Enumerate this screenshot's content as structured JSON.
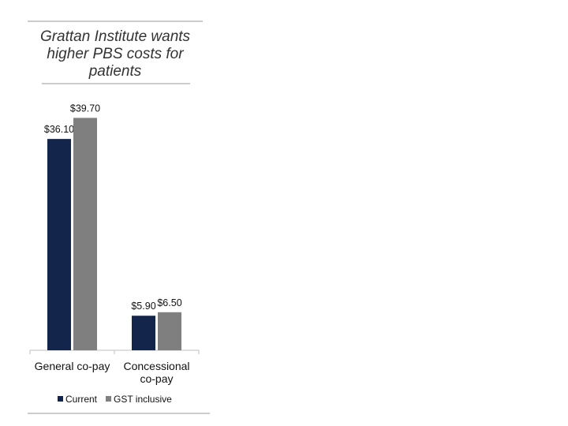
{
  "chart_data": {
    "type": "bar",
    "title_lines": [
      "Grattan Institute wants",
      "higher PBS costs for",
      "patients"
    ],
    "categories": [
      [
        "General co-pay"
      ],
      [
        "Concessional",
        "co-pay"
      ]
    ],
    "series": [
      {
        "name": "Current",
        "values": [
          36.1,
          5.9
        ],
        "labels": [
          "$36.10",
          "$5.90"
        ],
        "color": "#13254a"
      },
      {
        "name": "GST inclusive",
        "values": [
          39.7,
          6.5
        ],
        "labels": [
          "$39.70",
          "$6.50"
        ],
        "color": "#7f7f7f"
      }
    ],
    "ylim": [
      0,
      40
    ],
    "grid": false,
    "legend_position": "bottom-left"
  },
  "colors": {
    "rule": "#999999",
    "axis": "#bfbfbf"
  }
}
